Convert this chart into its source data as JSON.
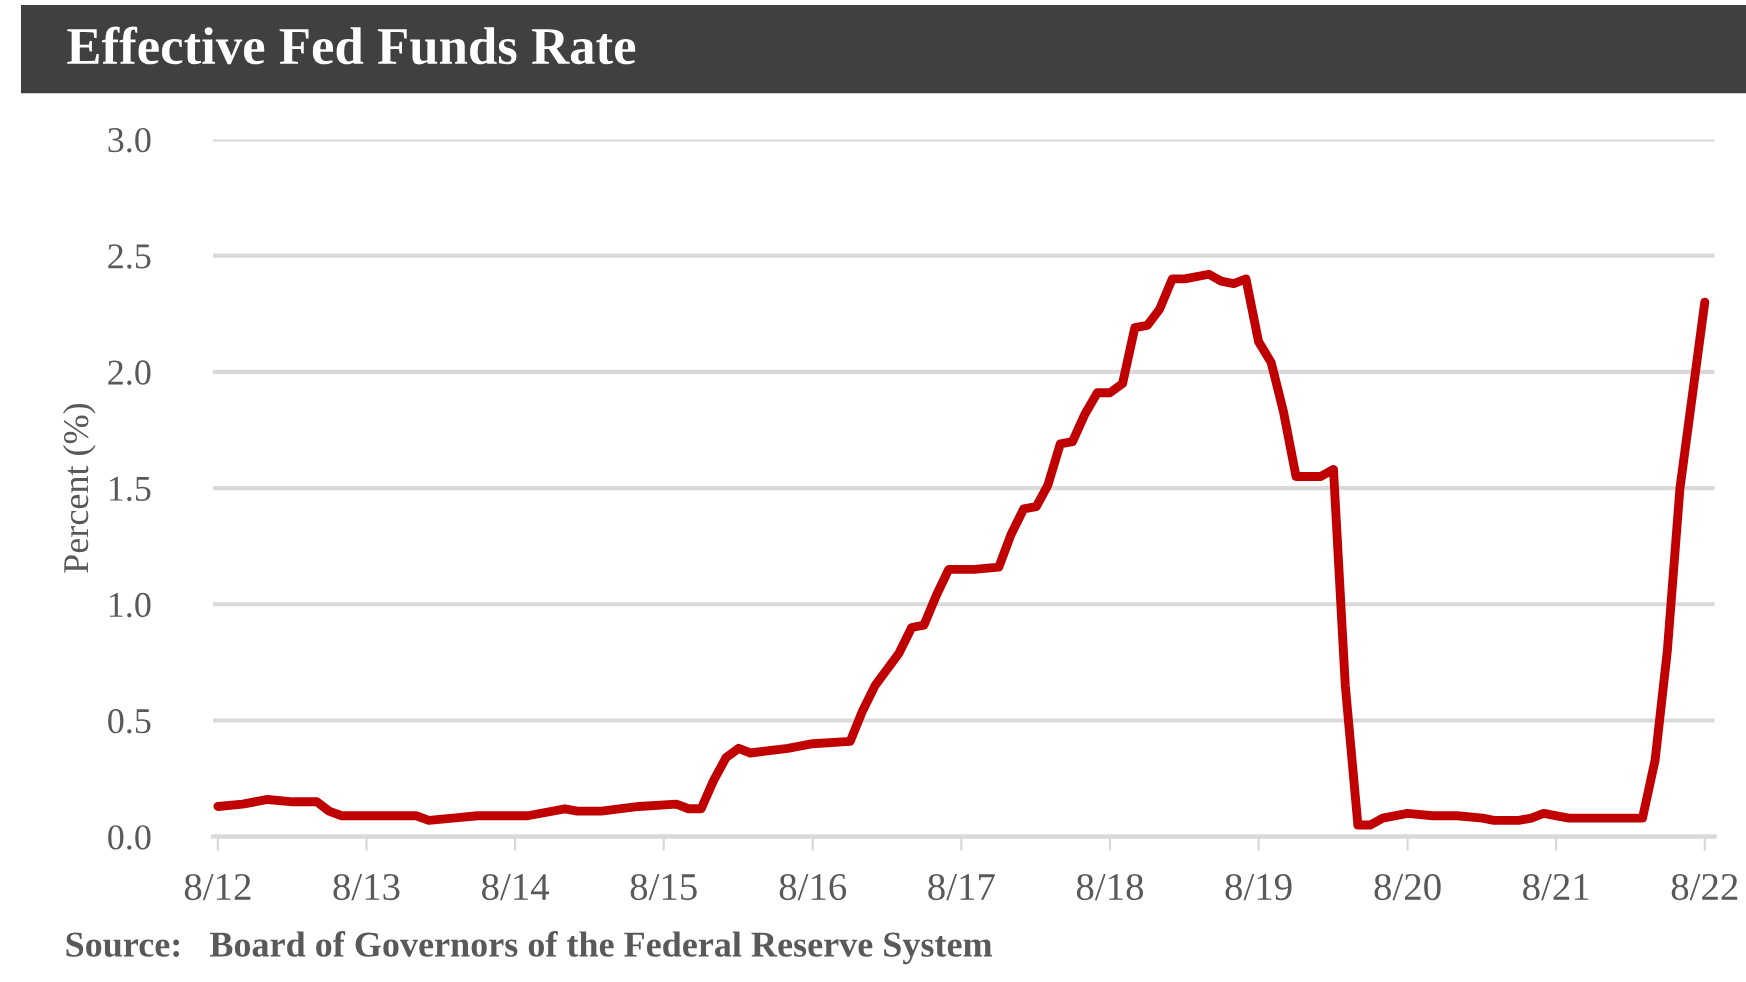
{
  "chart_data": {
    "type": "line",
    "title": "Effective Fed Funds Rate",
    "ylabel": "Percent (%)",
    "annotations": [
      "Source:   Board of Governors of the Federal Reserve System"
    ],
    "x": [
      "2012-08",
      "2012-10",
      "2012-12",
      "2013-02",
      "2013-04",
      "2013-05",
      "2013-06",
      "2013-08",
      "2013-10",
      "2013-12",
      "2014-01",
      "2014-03",
      "2014-05",
      "2014-07",
      "2014-09",
      "2014-12",
      "2015-01",
      "2015-03",
      "2015-06",
      "2015-09",
      "2015-10",
      "2015-11",
      "2015-12",
      "2016-01",
      "2016-02",
      "2016-03",
      "2016-06",
      "2016-08",
      "2016-11",
      "2016-12",
      "2017-01",
      "2017-03",
      "2017-04",
      "2017-05",
      "2017-06",
      "2017-07",
      "2017-09",
      "2017-11",
      "2017-12",
      "2018-01",
      "2018-02",
      "2018-03",
      "2018-04",
      "2018-05",
      "2018-06",
      "2018-07",
      "2018-08",
      "2018-09",
      "2018-10",
      "2018-11",
      "2018-12",
      "2019-01",
      "2019-02",
      "2019-04",
      "2019-05",
      "2019-06",
      "2019-07",
      "2019-08",
      "2019-09",
      "2019-10",
      "2019-11",
      "2019-12",
      "2020-01",
      "2020-02",
      "2020-03",
      "2020-04",
      "2020-05",
      "2020-06",
      "2020-08",
      "2020-10",
      "2020-12",
      "2021-02",
      "2021-03",
      "2021-05",
      "2021-06",
      "2021-07",
      "2021-09",
      "2021-12",
      "2022-03",
      "2022-04",
      "2022-05",
      "2022-06",
      "2022-08"
    ],
    "series": [
      {
        "color": "#c00000",
        "values": [
          0.13,
          0.14,
          0.16,
          0.15,
          0.15,
          0.11,
          0.09,
          0.09,
          0.09,
          0.09,
          0.07,
          0.08,
          0.09,
          0.09,
          0.09,
          0.12,
          0.11,
          0.11,
          0.13,
          0.14,
          0.12,
          0.12,
          0.24,
          0.34,
          0.38,
          0.36,
          0.38,
          0.4,
          0.41,
          0.54,
          0.65,
          0.79,
          0.9,
          0.91,
          1.04,
          1.15,
          1.15,
          1.16,
          1.3,
          1.41,
          1.42,
          1.51,
          1.69,
          1.7,
          1.82,
          1.91,
          1.91,
          1.95,
          2.19,
          2.2,
          2.27,
          2.4,
          2.4,
          2.42,
          2.39,
          2.38,
          2.4,
          2.13,
          2.04,
          1.83,
          1.55,
          1.55,
          1.55,
          1.58,
          0.65,
          0.05,
          0.05,
          0.08,
          0.1,
          0.09,
          0.09,
          0.08,
          0.07,
          0.07,
          0.08,
          0.1,
          0.08,
          0.08,
          0.08,
          0.33,
          0.8,
          1.5,
          2.3
        ]
      }
    ],
    "xlim": [
      "2012-07-20",
      "2022-08-25"
    ],
    "xticks": [
      {
        "value": "2012-08",
        "label": "8/12"
      },
      {
        "value": "2013-08",
        "label": "8/13"
      },
      {
        "value": "2014-08",
        "label": "8/14"
      },
      {
        "value": "2015-08",
        "label": "8/15"
      },
      {
        "value": "2016-08",
        "label": "8/16"
      },
      {
        "value": "2017-08",
        "label": "8/17"
      },
      {
        "value": "2018-08",
        "label": "8/18"
      },
      {
        "value": "2019-08",
        "label": "8/19"
      },
      {
        "value": "2020-08",
        "label": "8/20"
      },
      {
        "value": "2021-08",
        "label": "8/21"
      },
      {
        "value": "2022-08",
        "label": "8/22"
      }
    ],
    "ylim": [
      0,
      3
    ],
    "yticks": [
      {
        "value": 0,
        "label": "0.0"
      },
      {
        "value": 0.5,
        "label": "0.5"
      },
      {
        "value": 1,
        "label": "1.0"
      },
      {
        "value": 1.5,
        "label": "1.5"
      },
      {
        "value": 2,
        "label": "2.0"
      },
      {
        "value": 2.5,
        "label": "2.5"
      },
      {
        "value": 3,
        "label": "3.0"
      }
    ],
    "grid": "y",
    "marker": "none",
    "line_style": "solid"
  }
}
